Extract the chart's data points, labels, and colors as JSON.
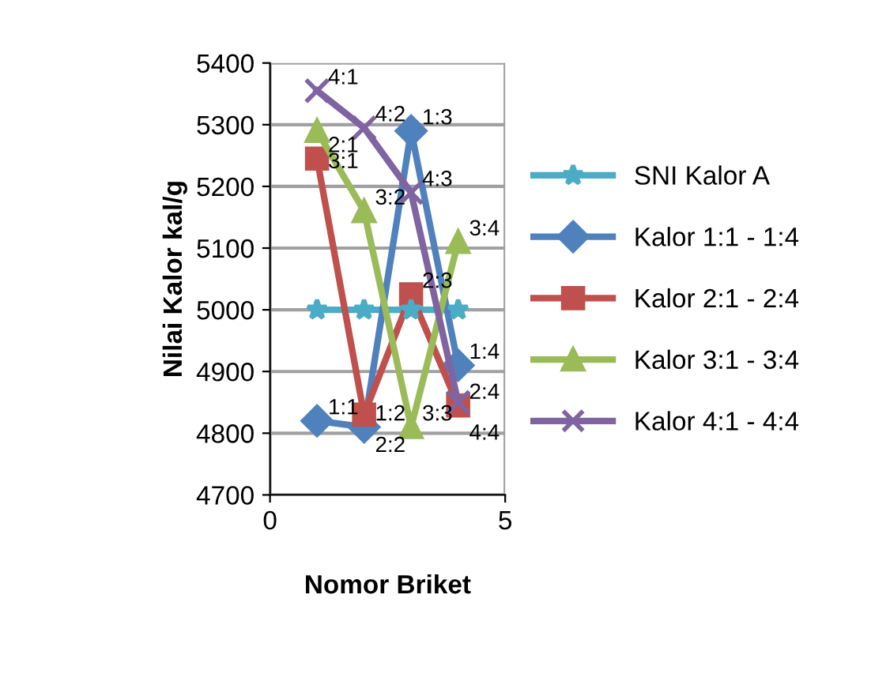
{
  "chart_data": {
    "type": "line",
    "xlabel": "Nomor Briket",
    "ylabel": "Nilai Kalor kal/g",
    "x": [
      1,
      2,
      3,
      4
    ],
    "series": [
      {
        "name": "SNI Kalor A",
        "color": "#4bacc6",
        "marker": "star",
        "values": [
          5000,
          5000,
          5000,
          5000
        ]
      },
      {
        "name": "Kalor 1:1 - 1:4",
        "color": "#4f81bd",
        "marker": "diamond",
        "values": [
          4820,
          4810,
          5290,
          4910
        ]
      },
      {
        "name": "Kalor 2:1 - 2:4",
        "color": "#c0504d",
        "marker": "square",
        "values": [
          5245,
          4830,
          5025,
          4845
        ]
      },
      {
        "name": "Kalor 3:1 - 3:4",
        "color": "#9bbb59",
        "marker": "triangle",
        "values": [
          5290,
          5160,
          4810,
          5110
        ]
      },
      {
        "name": "Kalor 4:1 - 4:4",
        "color": "#8064a2",
        "marker": "cross",
        "values": [
          5355,
          5295,
          5190,
          4850
        ]
      }
    ],
    "annotations": [
      {
        "text": "1:1",
        "x": 1,
        "y": 4820
      },
      {
        "text": "1:2",
        "x": 2,
        "y": 4810
      },
      {
        "text": "1:3",
        "x": 3,
        "y": 5290
      },
      {
        "text": "1:4",
        "x": 4,
        "y": 4910
      },
      {
        "text": "2:1",
        "x": 1,
        "y": 5245
      },
      {
        "text": "2:2",
        "x": 2,
        "y": 4830
      },
      {
        "text": "2:3",
        "x": 3,
        "y": 5025
      },
      {
        "text": "2:4",
        "x": 4,
        "y": 4845
      },
      {
        "text": "3:1",
        "x": 1,
        "y": 5290
      },
      {
        "text": "3:2",
        "x": 2,
        "y": 5160
      },
      {
        "text": "3:3",
        "x": 3,
        "y": 4810
      },
      {
        "text": "3:4",
        "x": 4,
        "y": 5110
      },
      {
        "text": "4:1",
        "x": 1,
        "y": 5355
      },
      {
        "text": "4:2",
        "x": 2,
        "y": 5295
      },
      {
        "text": "4:3",
        "x": 3,
        "y": 5190
      },
      {
        "text": "4:4",
        "x": 4,
        "y": 4850
      }
    ],
    "xlim": [
      0,
      5
    ],
    "xticks": [
      0,
      5
    ],
    "ylim": [
      4700,
      5400
    ],
    "yticks": [
      4700,
      4800,
      4900,
      5000,
      5100,
      5200,
      5300,
      5400
    ],
    "grid": true,
    "legend": "right",
    "line_style": "solid"
  }
}
